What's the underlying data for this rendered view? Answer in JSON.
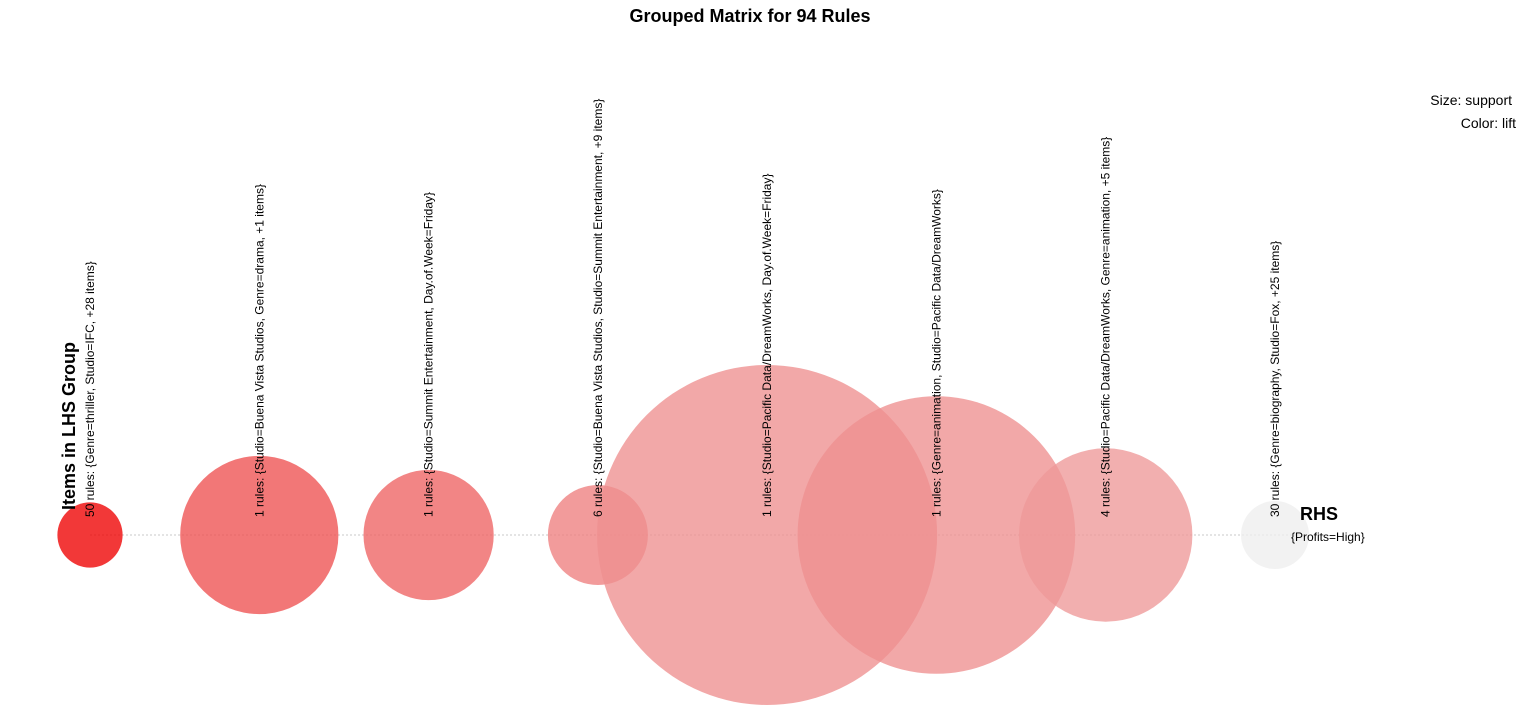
{
  "chart_data": {
    "type": "scatter",
    "title": "Grouped Matrix for 94 Rules",
    "size_label": "Size: support",
    "color_label": "Color: lift",
    "xlabel": "Items in LHS Group",
    "ylabel": "RHS",
    "rhs": [
      "{Profits=High}"
    ],
    "lift_color_scale": {
      "high": "#EE0000",
      "low": "#EEEEEE"
    },
    "groups": [
      {
        "label": "50 rules: {Genre=thriller, Studio=IFC, +28 items}",
        "rhs": "{Profits=High}",
        "support": 0.011,
        "lift": 2.6
      },
      {
        "label": "1 rules: {Studio=Buena Vista Studios, Genre=drama, +1 items}",
        "rhs": "{Profits=High}",
        "support": 0.065,
        "lift": 1.75
      },
      {
        "label": "1 rules: {Studio=Summit Entertainment, Day.of.Week=Friday}",
        "rhs": "{Profits=High}",
        "support": 0.044,
        "lift": 1.6
      },
      {
        "label": "6 rules: {Studio=Buena Vista Studios, Studio=Summit Entertainment, +9 items}",
        "rhs": "{Profits=High}",
        "support": 0.026,
        "lift": 1.4
      },
      {
        "label": "1 rules: {Studio=Pacific Data/DreamWorks, Day.of.Week=Friday}",
        "rhs": "{Profits=High}",
        "support": 0.3,
        "lift": 1.3
      },
      {
        "label": "1 rules: {Genre=animation, Studio=Pacific Data/DreamWorks}",
        "rhs": "{Profits=High}",
        "support": 0.2,
        "lift": 1.3
      },
      {
        "label": "4 rules: {Studio=Pacific Data/DreamWorks, Genre=animation, +5 items}",
        "rhs": "{Profits=High}",
        "support": 0.078,
        "lift": 1.25
      },
      {
        "label": "30 rules: {Genre=biography, Studio=Fox, +25 items}",
        "rhs": "{Profits=High}",
        "support": 0.012,
        "lift": 1.0
      }
    ]
  }
}
